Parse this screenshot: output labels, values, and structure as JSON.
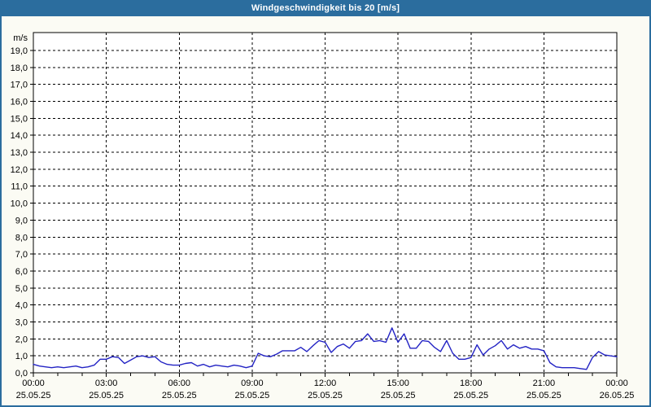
{
  "window": {
    "title": "Windgeschwindigkeit bis 20 [m/s]"
  },
  "colors": {
    "titlebar_bg": "#2b6d9e",
    "frame": "#2b6d9e",
    "window_bg": "#fbfbf4",
    "plot_bg": "#ffffff",
    "grid": "#000000",
    "axis": "#000000",
    "label": "#000000",
    "title_text": "#ffffff",
    "line": "#2323c4"
  },
  "chart_data": {
    "type": "line",
    "title": "Windgeschwindigkeit bis 20 [m/s]",
    "ylabel": "m/s",
    "unit_label": "m/s",
    "ylim": [
      0,
      20
    ],
    "ytick_step": 1.0,
    "ytick_labels": [
      "0,0",
      "1,0",
      "2,0",
      "3,0",
      "4,0",
      "5,0",
      "6,0",
      "7,0",
      "8,0",
      "9,0",
      "10,0",
      "11,0",
      "12,0",
      "13,0",
      "14,0",
      "15,0",
      "16,0",
      "17,0",
      "18,0",
      "19,0"
    ],
    "grid": "dashed",
    "legend": "none",
    "x_start_hour": 0,
    "x_end_hour": 24,
    "x_interval_minutes": 15,
    "minor_tick_every_hours": 1,
    "xticks": [
      {
        "hour": 0,
        "time": "00:00",
        "date": "25.05.25"
      },
      {
        "hour": 3,
        "time": "03:00",
        "date": "25.05.25"
      },
      {
        "hour": 6,
        "time": "06:00",
        "date": "25.05.25"
      },
      {
        "hour": 9,
        "time": "09:00",
        "date": "25.05.25"
      },
      {
        "hour": 12,
        "time": "12:00",
        "date": "25.05.25"
      },
      {
        "hour": 15,
        "time": "15:00",
        "date": "25.05.25"
      },
      {
        "hour": 18,
        "time": "18:00",
        "date": "25.05.25"
      },
      {
        "hour": 21,
        "time": "21:00",
        "date": "25.05.25"
      },
      {
        "hour": 24,
        "time": "00:00",
        "date": "26.05.25"
      }
    ],
    "series": [
      {
        "name": "Windgeschwindigkeit",
        "unit": "m/s",
        "values": [
          0.5,
          0.4,
          0.35,
          0.3,
          0.35,
          0.3,
          0.35,
          0.4,
          0.3,
          0.35,
          0.45,
          0.8,
          0.8,
          0.95,
          0.9,
          0.55,
          0.75,
          0.95,
          1.0,
          0.9,
          0.95,
          0.65,
          0.5,
          0.45,
          0.45,
          0.55,
          0.6,
          0.4,
          0.5,
          0.35,
          0.45,
          0.4,
          0.35,
          0.45,
          0.4,
          0.3,
          0.4,
          1.15,
          1.0,
          0.95,
          1.1,
          1.3,
          1.3,
          1.3,
          1.5,
          1.25,
          1.6,
          1.9,
          1.8,
          1.2,
          1.55,
          1.7,
          1.45,
          1.85,
          1.9,
          2.3,
          1.85,
          1.9,
          1.8,
          2.65,
          1.8,
          2.3,
          1.45,
          1.45,
          1.9,
          1.85,
          1.5,
          1.25,
          1.9,
          1.15,
          0.8,
          0.8,
          0.9,
          1.65,
          1.05,
          1.4,
          1.6,
          1.9,
          1.4,
          1.65,
          1.45,
          1.55,
          1.4,
          1.4,
          1.3,
          0.6,
          0.35,
          0.3,
          0.3,
          0.3,
          0.25,
          0.2,
          0.9,
          1.25,
          1.05,
          1.0,
          0.95
        ]
      }
    ]
  }
}
